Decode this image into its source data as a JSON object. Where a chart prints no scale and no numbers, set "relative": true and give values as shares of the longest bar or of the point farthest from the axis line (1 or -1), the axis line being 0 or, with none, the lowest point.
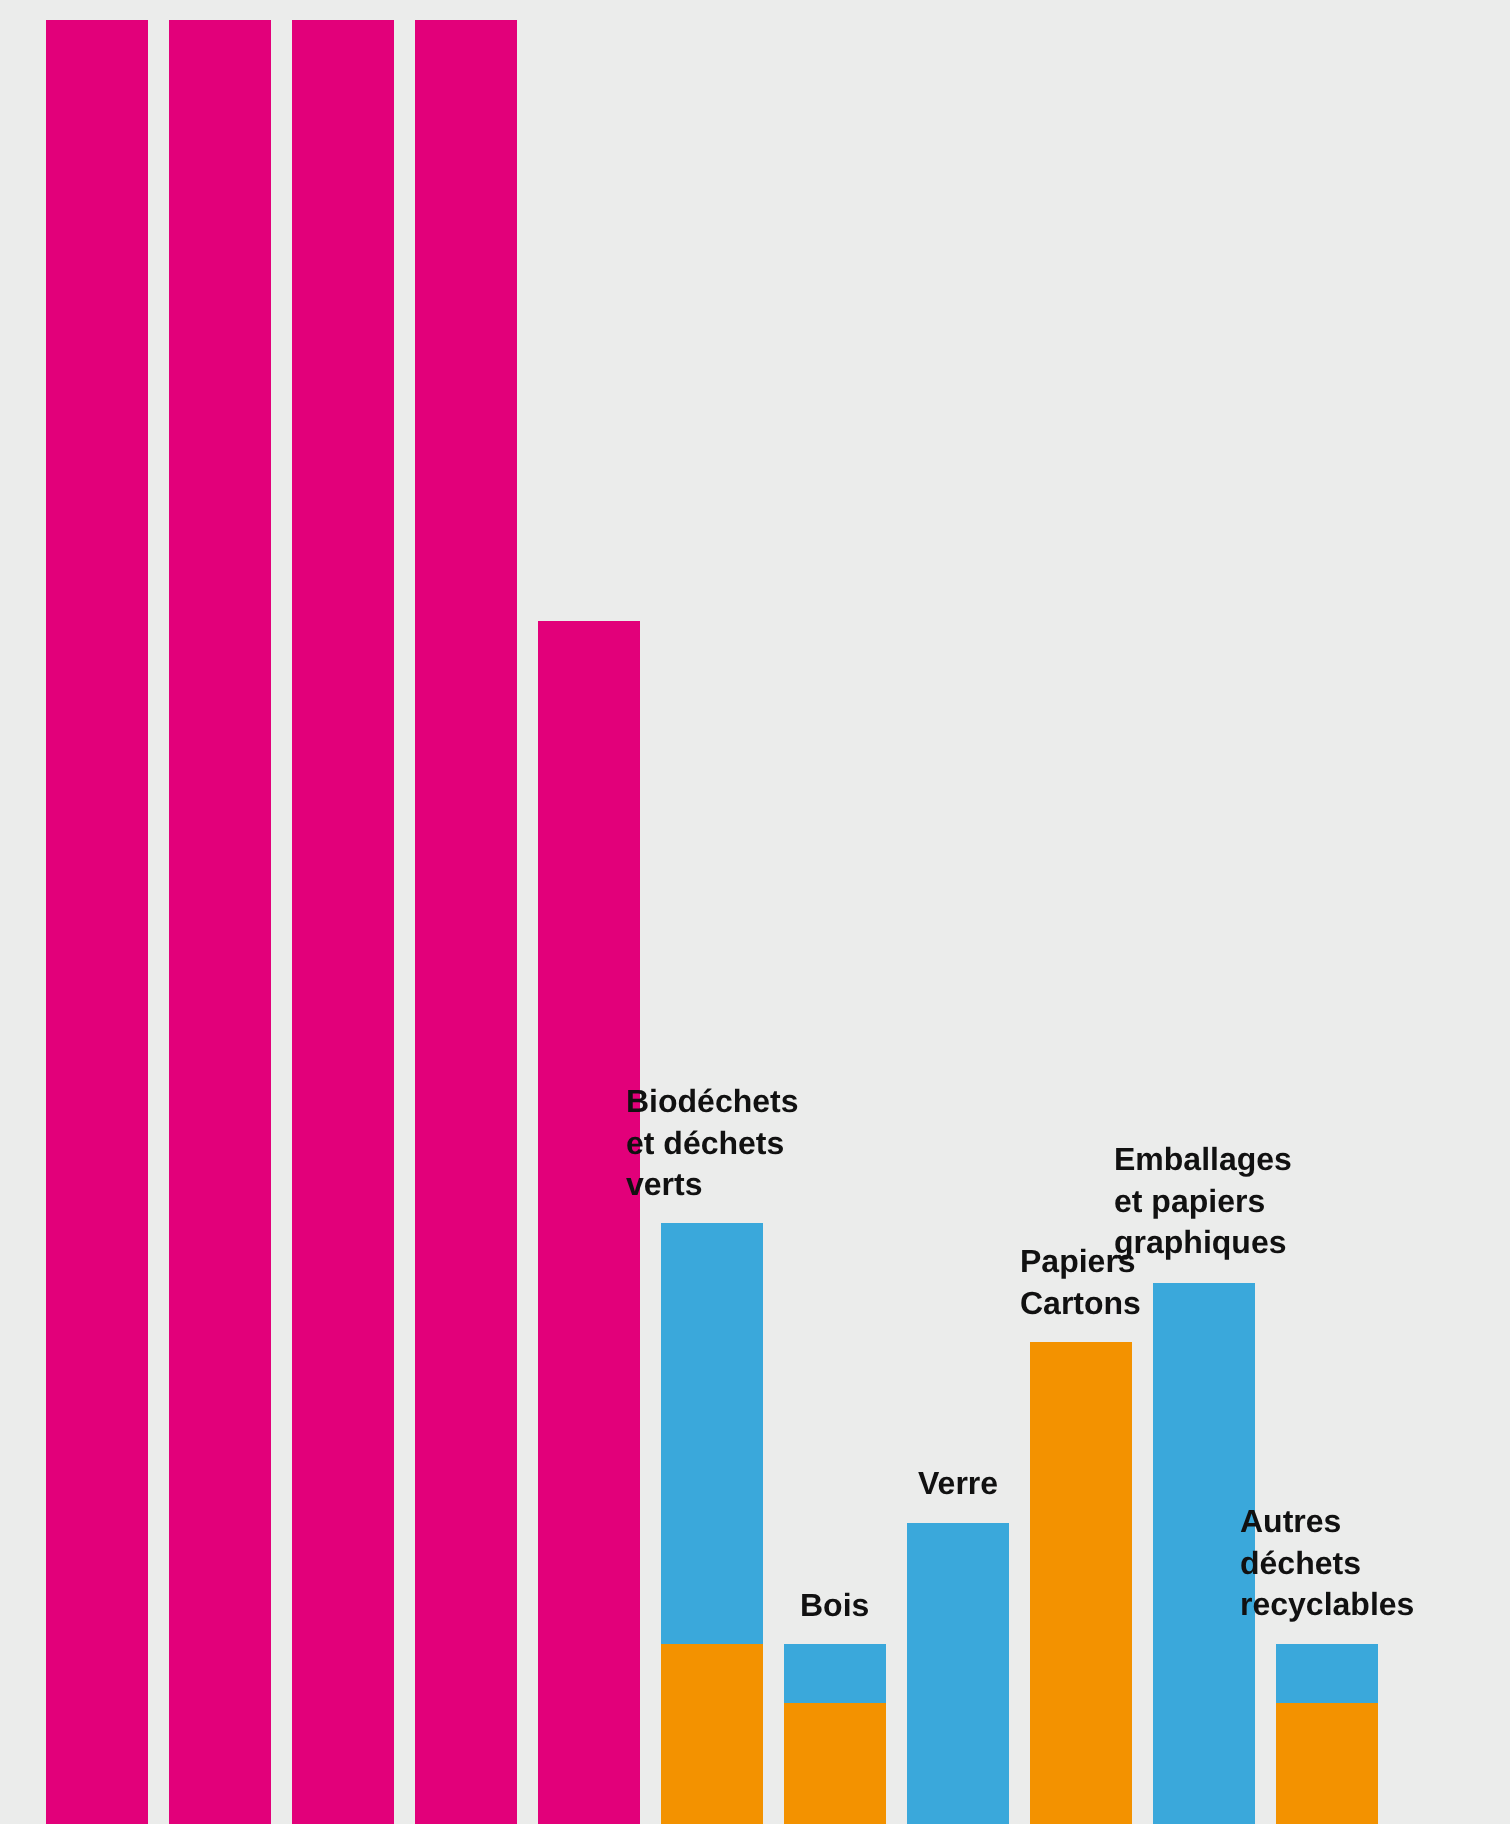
{
  "chart_data": {
    "type": "bar",
    "relative": true,
    "stacked": true,
    "categories": [
      null,
      null,
      null,
      null,
      null,
      "Biodéchets et déchets verts",
      "Bois",
      "Verre",
      "Papiers Cartons",
      "Emballages et papiers graphiques",
      "Autres déchets recyclables"
    ],
    "series": [
      {
        "color": "#e2007a",
        "values": [
          1,
          1,
          1,
          1,
          0.667,
          null,
          null,
          null,
          null,
          null,
          null
        ]
      },
      {
        "color": "#f39200",
        "values": [
          null,
          null,
          null,
          null,
          null,
          0.1,
          0.067,
          null,
          0.267,
          null,
          0.067
        ]
      },
      {
        "color": "#3aa8db",
        "values": [
          null,
          null,
          null,
          null,
          null,
          0.233,
          0.033,
          0.167,
          null,
          0.3,
          0.033
        ]
      }
    ]
  }
}
